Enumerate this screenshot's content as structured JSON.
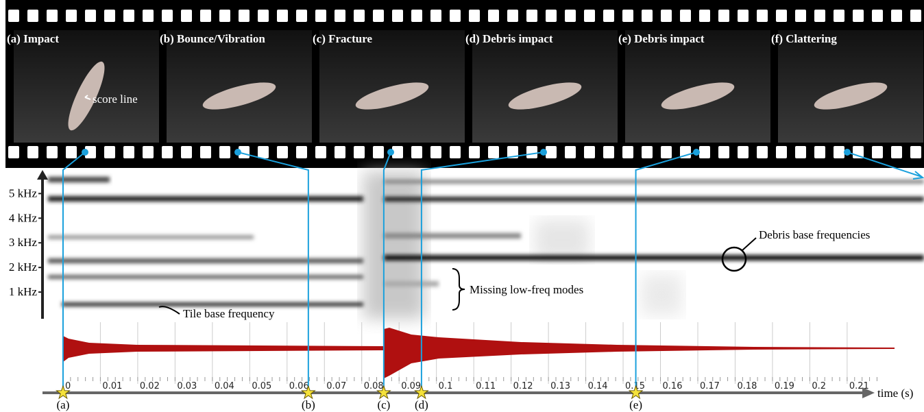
{
  "frames": [
    "(a) Impact",
    "(b) Bounce/Vibration",
    "(c) Fracture",
    "(d) Debris impact",
    "(e) Debris impact",
    "(f) Clattering"
  ],
  "annotations": {
    "score_line": "score line",
    "tile_base": "Tile base frequency",
    "missing_modes": "Missing low-freq modes",
    "debris_base": "Debris base frequencies"
  },
  "chart_data": {
    "type": "spectrogram",
    "ylim": [
      0,
      5.9
    ],
    "yticks": [
      {
        "value": 1,
        "label": "1 kHz"
      },
      {
        "value": 2,
        "label": "2 kHz"
      },
      {
        "value": 3,
        "label": "3 kHz"
      },
      {
        "value": 4,
        "label": "4 kHz"
      },
      {
        "value": 5,
        "label": "5 kHz"
      }
    ],
    "xlim": [
      -0.0055,
      0.2181
    ],
    "xticks": [
      0,
      0.01,
      0.02,
      0.03,
      0.04,
      0.05,
      0.06,
      0.07,
      0.08,
      0.09,
      0.1,
      0.11,
      0.12,
      0.13,
      0.14,
      0.15,
      0.16,
      0.17,
      0.18,
      0.19,
      0.2,
      0.21
    ],
    "xlabel": "time (s)",
    "events": [
      {
        "label": "(a)",
        "time": 0
      },
      {
        "label": "(b)",
        "time": 0.0657
      },
      {
        "label": "(c)",
        "time": 0.0859
      },
      {
        "label": "(d)",
        "time": 0.096
      },
      {
        "label": "(e)",
        "time": 0.1534
      }
    ]
  }
}
